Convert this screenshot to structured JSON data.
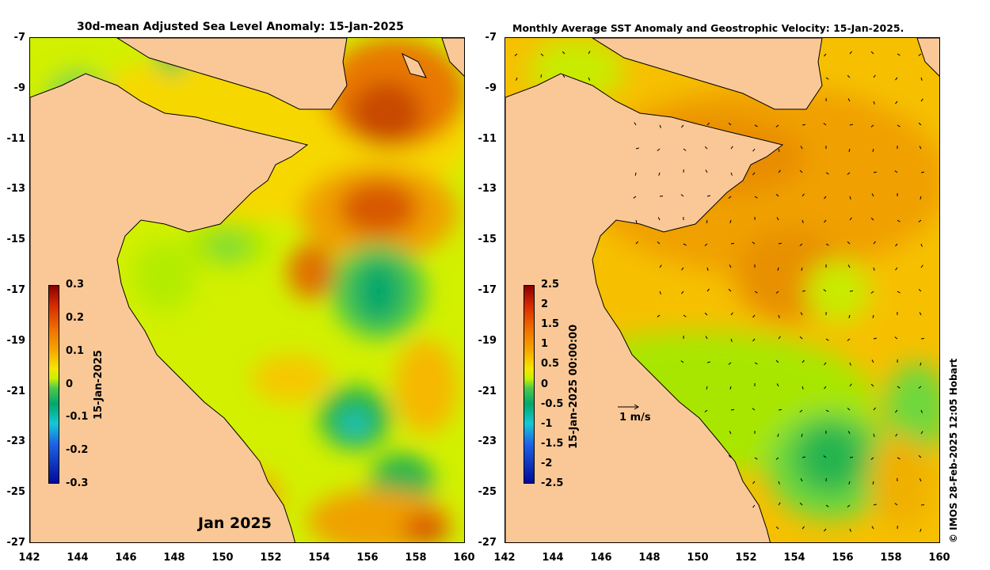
{
  "left_panel": {
    "title": "30d-mean Adjusted Sea Level Anomaly: 15-Jan-2025",
    "colorbar_label": "15-Jan-2025",
    "colorbar_ticks": [
      "0.3",
      "0.2",
      "0.1",
      "0",
      "-0.1",
      "-0.2",
      "-0.3"
    ],
    "month_label": "Jan 2025"
  },
  "right_panel": {
    "title": "Monthly Average SST Anomaly  and Geostrophic Velocity: 15-Jan-2025.",
    "colorbar_label": "15-Jan-2025 00:00:00",
    "colorbar_ticks": [
      "2.5",
      "2",
      "1.5",
      "1",
      "0.5",
      "0",
      "-0.5",
      "-1",
      "-1.5",
      "-2",
      "-2.5"
    ],
    "vector_scale_label": "1 m/s"
  },
  "y_ticks": [
    "-7",
    "-9",
    "-11",
    "-13",
    "-15",
    "-17",
    "-19",
    "-21",
    "-23",
    "-25",
    "-27"
  ],
  "x_ticks": [
    "142",
    "144",
    "146",
    "148",
    "150",
    "152",
    "154",
    "156",
    "158",
    "160"
  ],
  "credit": "© IMOS 28-Feb-2025 12:05 Hobart",
  "colors": {
    "land": "#fac896",
    "anomaly_high": "#c84800",
    "anomaly_mid": "#f6e600",
    "anomaly_zero": "#28b450",
    "anomaly_low": "#14c8d6"
  }
}
